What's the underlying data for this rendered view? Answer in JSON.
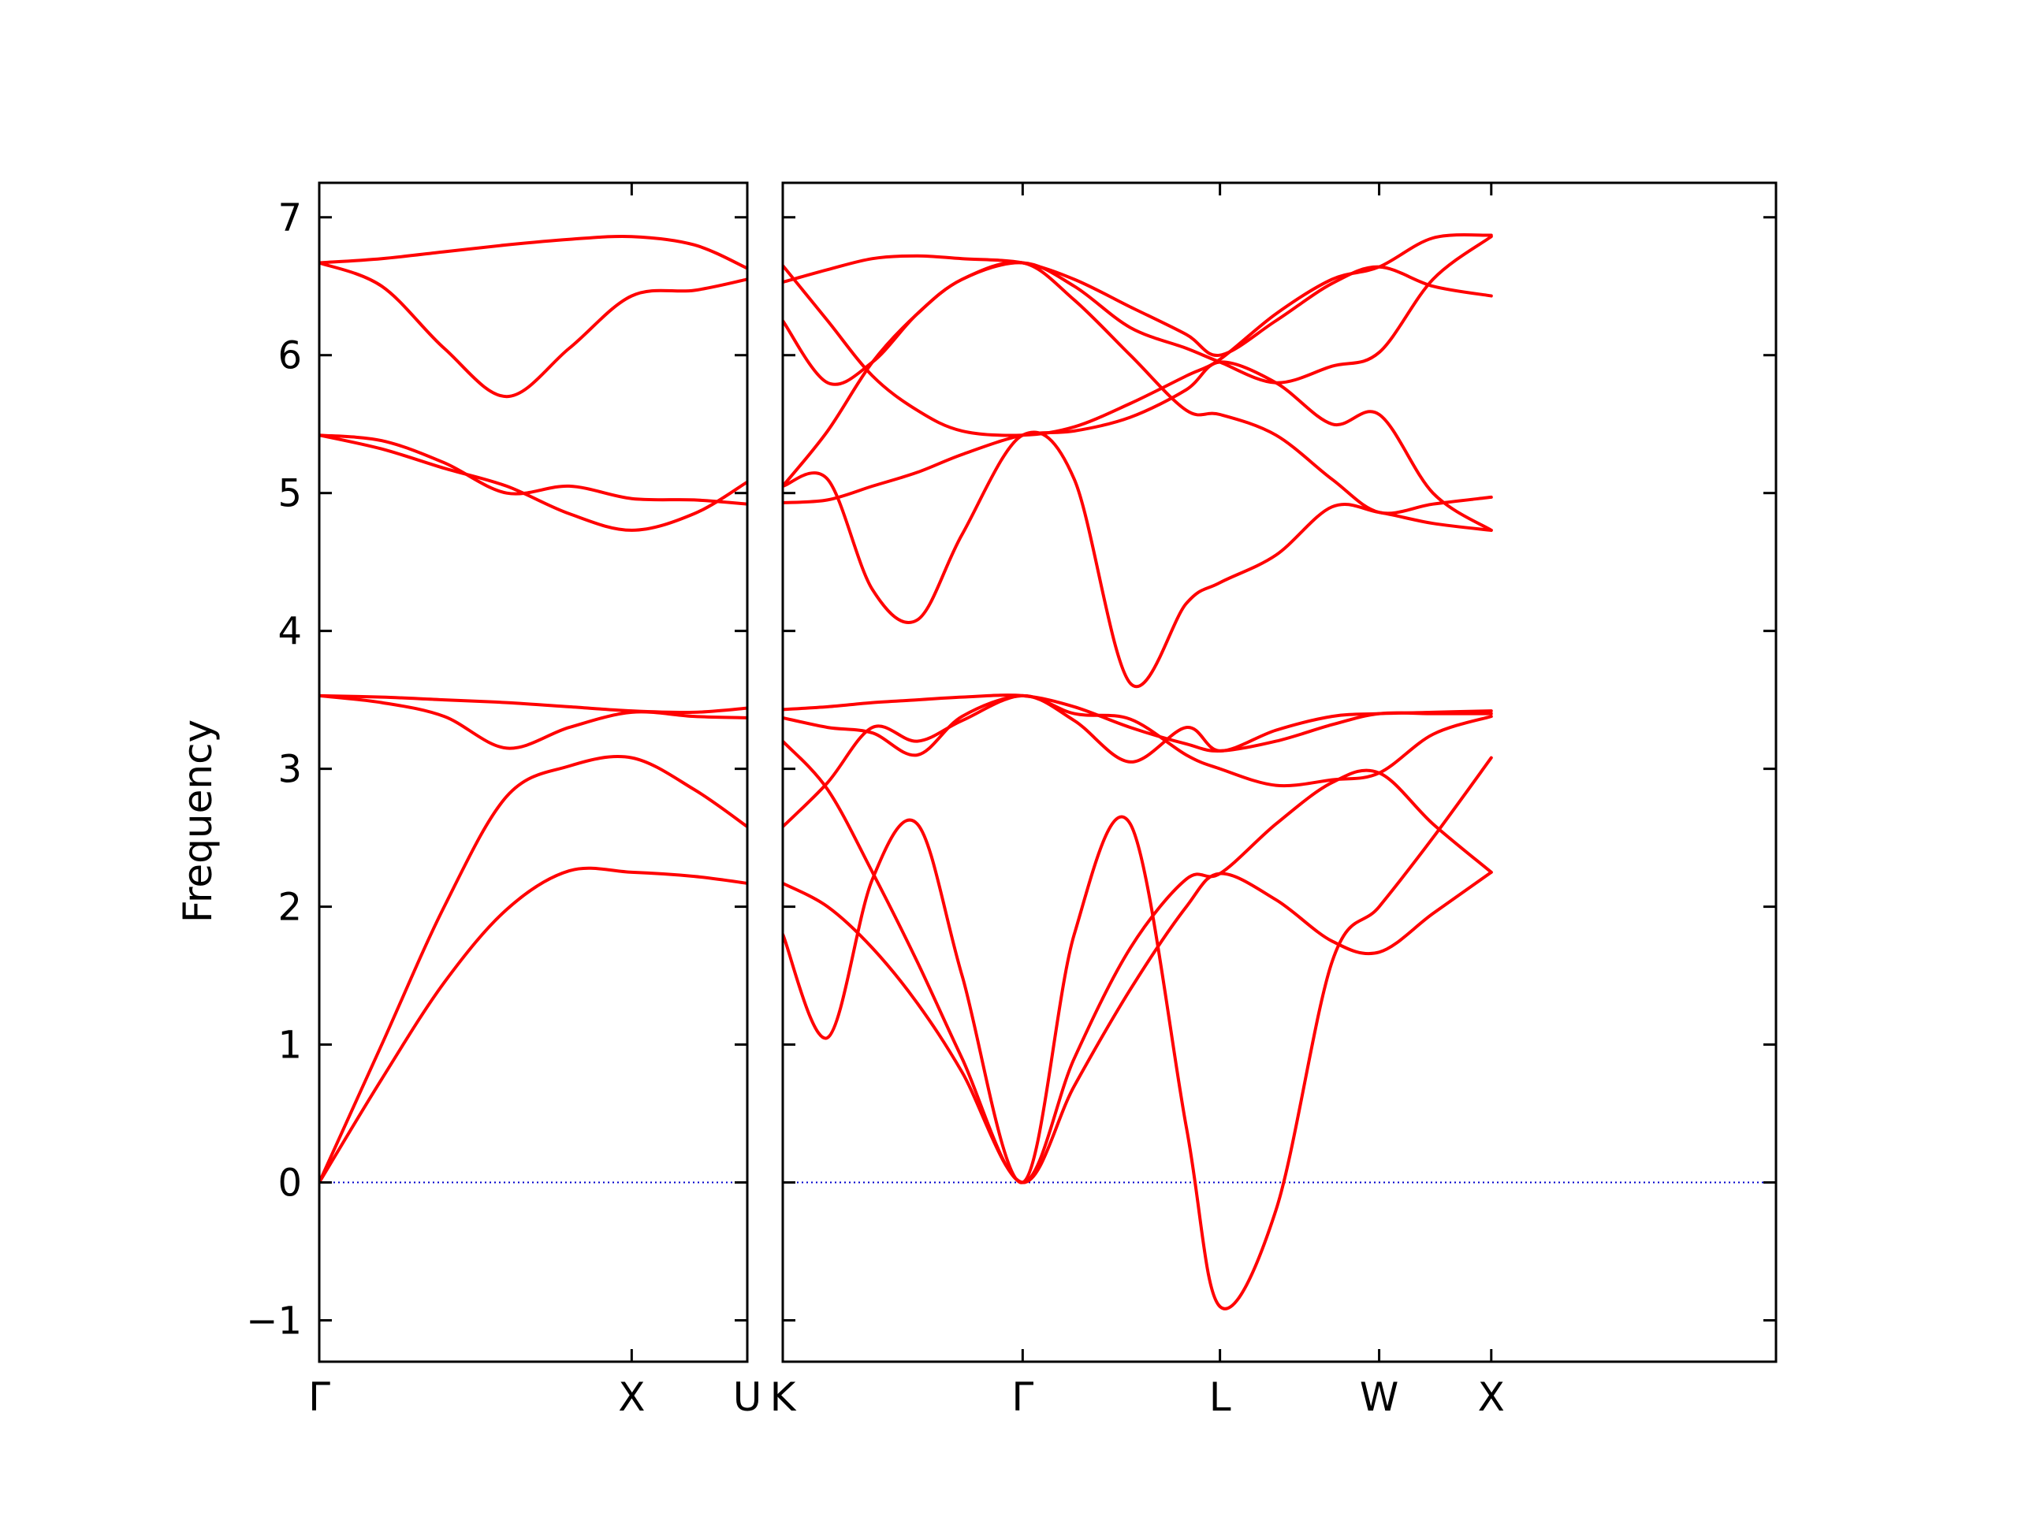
{
  "chart_data": {
    "type": "line",
    "ylabel": "Frequency",
    "ylim": [
      -1.3,
      7.25
    ],
    "yticks": [
      -1,
      0,
      1,
      2,
      3,
      4,
      5,
      6,
      7
    ],
    "ytick_labels": [
      "−1",
      "0",
      "1",
      "2",
      "3",
      "4",
      "5",
      "6",
      "7"
    ],
    "colors": {
      "bands": "#ff0000",
      "zero_line": "#0000cc",
      "axes": "#000000"
    },
    "panels": [
      {
        "xlim": [
          0,
          1.37
        ],
        "ticks": [
          {
            "x": 0,
            "label": "Γ"
          },
          {
            "x": 1.0,
            "label": "X"
          },
          {
            "x": 1.37,
            "label": "U"
          }
        ],
        "bands": [
          {
            "x": [
              0,
              0.2,
              0.4,
              0.6,
              0.8,
              1.0,
              1.2,
              1.37
            ],
            "y": [
              0.0,
              0.75,
              1.45,
              1.98,
              2.26,
              2.25,
              2.22,
              2.17
            ]
          },
          {
            "x": [
              0,
              0.2,
              0.4,
              0.6,
              0.8,
              1.0,
              1.2,
              1.37
            ],
            "y": [
              0.0,
              1.0,
              2.0,
              2.8,
              3.02,
              3.08,
              2.85,
              2.58
            ]
          },
          {
            "x": [
              0,
              0.2,
              0.4,
              0.6,
              0.8,
              1.0,
              1.2,
              1.37
            ],
            "y": [
              3.53,
              3.52,
              3.5,
              3.48,
              3.45,
              3.42,
              3.41,
              3.44
            ]
          },
          {
            "x": [
              0,
              0.2,
              0.4,
              0.6,
              0.8,
              1.0,
              1.2,
              1.37
            ],
            "y": [
              3.53,
              3.48,
              3.38,
              3.15,
              3.3,
              3.41,
              3.38,
              3.37
            ]
          },
          {
            "x": [
              0,
              0.2,
              0.4,
              0.6,
              0.8,
              1.0,
              1.2,
              1.37
            ],
            "y": [
              5.42,
              5.38,
              5.22,
              5.0,
              5.05,
              4.96,
              4.95,
              4.92
            ]
          },
          {
            "x": [
              0,
              0.2,
              0.4,
              0.6,
              0.8,
              1.0,
              1.2,
              1.37
            ],
            "y": [
              5.42,
              5.32,
              5.18,
              5.05,
              4.85,
              4.73,
              4.85,
              5.08
            ]
          },
          {
            "x": [
              0,
              0.2,
              0.4,
              0.6,
              0.8,
              1.0,
              1.2,
              1.37
            ],
            "y": [
              6.67,
              6.5,
              6.05,
              5.7,
              6.05,
              6.43,
              6.47,
              6.55
            ]
          },
          {
            "x": [
              0,
              0.2,
              0.4,
              0.6,
              0.8,
              1.0,
              1.2,
              1.37
            ],
            "y": [
              6.67,
              6.7,
              6.75,
              6.8,
              6.84,
              6.86,
              6.8,
              6.63
            ]
          }
        ]
      },
      {
        "xlim": [
          0,
          4.43
        ],
        "ticks": [
          {
            "x": 0,
            "label": "K"
          },
          {
            "x": 1.07,
            "label": "Γ"
          },
          {
            "x": 1.95,
            "label": "L"
          },
          {
            "x": 2.66,
            "label": "W"
          },
          {
            "x": 3.16,
            "label": "X"
          }
        ],
        "bands": [
          {
            "x": [
              0,
              0.2,
              0.4,
              0.6,
              0.8,
              1.07,
              1.3,
              1.55,
              1.8,
              1.95,
              2.2,
              2.45,
              2.66,
              2.9,
              3.16
            ],
            "y": [
              2.17,
              2.0,
              1.7,
              1.3,
              0.8,
              0.0,
              0.7,
              1.4,
              2.0,
              2.24,
              2.05,
              1.75,
              1.67,
              1.95,
              2.25
            ]
          },
          {
            "x": [
              0,
              0.2,
              0.4,
              0.6,
              0.8,
              1.07,
              1.3,
              1.55,
              1.8,
              1.95,
              2.2,
              2.45,
              2.66,
              2.9,
              3.16
            ],
            "y": [
              1.8,
              1.05,
              2.2,
              2.6,
              1.5,
              0.0,
              1.8,
              2.6,
              0.4,
              -0.9,
              -0.2,
              1.6,
              2.0,
              2.5,
              3.08
            ]
          },
          {
            "x": [
              0,
              0.2,
              0.4,
              0.6,
              0.8,
              1.07,
              1.3,
              1.55,
              1.8,
              1.95,
              2.2,
              2.45,
              2.66,
              2.9,
              3.16
            ],
            "y": [
              3.2,
              2.85,
              2.25,
              1.6,
              0.9,
              0.0,
              0.9,
              1.7,
              2.2,
              2.24,
              2.6,
              2.9,
              2.97,
              2.6,
              2.25
            ]
          },
          {
            "x": [
              0,
              0.2,
              0.4,
              0.6,
              0.8,
              1.07,
              1.3,
              1.55,
              1.8,
              1.95,
              2.2,
              2.45,
              2.66,
              2.9,
              3.16
            ],
            "y": [
              2.58,
              2.9,
              3.3,
              3.2,
              3.35,
              3.53,
              3.35,
              3.05,
              3.3,
              3.13,
              3.28,
              3.38,
              3.4,
              3.41,
              3.42
            ]
          },
          {
            "x": [
              0,
              0.2,
              0.4,
              0.6,
              0.8,
              1.07,
              1.3,
              1.55,
              1.8,
              1.95,
              2.2,
              2.45,
              2.66,
              2.9,
              3.16
            ],
            "y": [
              3.37,
              3.3,
              3.26,
              3.1,
              3.38,
              3.53,
              3.4,
              3.36,
              3.1,
              3.0,
              2.88,
              2.92,
              2.97,
              3.25,
              3.38
            ]
          },
          {
            "x": [
              0,
              0.2,
              0.4,
              0.6,
              0.8,
              1.07,
              1.3,
              1.55,
              1.8,
              1.95,
              2.2,
              2.45,
              2.66,
              2.9,
              3.16
            ],
            "y": [
              3.43,
              3.45,
              3.48,
              3.5,
              3.52,
              3.53,
              3.45,
              3.3,
              3.18,
              3.13,
              3.2,
              3.32,
              3.4,
              3.4,
              3.4
            ]
          },
          {
            "x": [
              0,
              0.2,
              0.4,
              0.6,
              0.8,
              1.07,
              1.3,
              1.55,
              1.8,
              1.95,
              2.2,
              2.45,
              2.66,
              2.9,
              3.16
            ],
            "y": [
              5.05,
              5.1,
              4.3,
              4.08,
              4.7,
              5.42,
              5.1,
              3.62,
              4.2,
              4.35,
              4.55,
              4.9,
              4.86,
              4.78,
              4.73
            ]
          },
          {
            "x": [
              0,
              0.2,
              0.4,
              0.6,
              0.8,
              1.07,
              1.3,
              1.55,
              1.8,
              1.95,
              2.2,
              2.45,
              2.66,
              2.9,
              3.16
            ],
            "y": [
              4.93,
              4.95,
              5.05,
              5.15,
              5.28,
              5.42,
              5.45,
              5.55,
              5.75,
              5.95,
              5.8,
              5.5,
              5.57,
              5.0,
              4.73
            ]
          },
          {
            "x": [
              0,
              0.2,
              0.4,
              0.6,
              0.8,
              1.07,
              1.3,
              1.55,
              1.8,
              1.95,
              2.2,
              2.45,
              2.66,
              2.9,
              3.16
            ],
            "y": [
              6.25,
              5.8,
              5.95,
              6.3,
              6.55,
              6.67,
              6.4,
              6.0,
              5.6,
              5.57,
              5.42,
              5.1,
              4.86,
              4.92,
              4.97
            ]
          },
          {
            "x": [
              0,
              0.2,
              0.4,
              0.6,
              0.8,
              1.07,
              1.3,
              1.55,
              1.8,
              1.95,
              2.2,
              2.45,
              2.66,
              2.9,
              3.16
            ],
            "y": [
              5.05,
              5.45,
              5.95,
              6.3,
              6.55,
              6.67,
              6.5,
              6.2,
              6.05,
              5.95,
              5.8,
              5.92,
              6.02,
              6.55,
              6.86
            ]
          },
          {
            "x": [
              0,
              0.2,
              0.4,
              0.6,
              0.8,
              1.07,
              1.3,
              1.55,
              1.8,
              1.95,
              2.2,
              2.45,
              2.66,
              2.9,
              3.16
            ],
            "y": [
              6.65,
              6.25,
              5.85,
              5.6,
              5.45,
              5.42,
              5.48,
              5.65,
              5.85,
              5.97,
              6.3,
              6.55,
              6.64,
              6.85,
              6.87
            ]
          },
          {
            "x": [
              0,
              0.2,
              0.4,
              0.6,
              0.8,
              1.07,
              1.3,
              1.55,
              1.8,
              1.95,
              2.2,
              2.45,
              2.66,
              2.9,
              3.16
            ],
            "y": [
              6.53,
              6.62,
              6.7,
              6.72,
              6.7,
              6.67,
              6.55,
              6.35,
              6.15,
              6.0,
              6.25,
              6.52,
              6.64,
              6.5,
              6.43
            ]
          }
        ]
      }
    ]
  }
}
